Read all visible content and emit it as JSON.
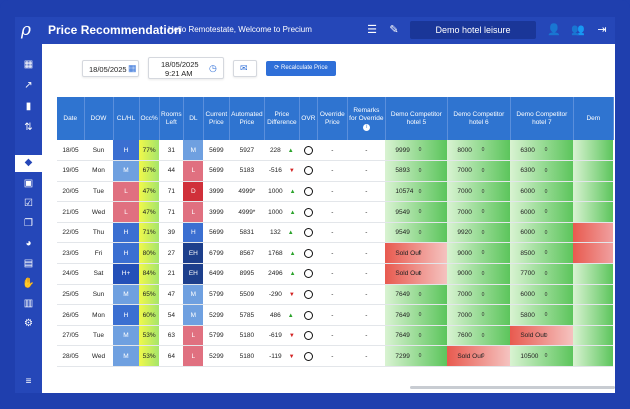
{
  "header": {
    "title": "Price Recommendation",
    "welcome": "Hello Remotestate, Welcome to Precium",
    "hotel": "Demo hotel leisure",
    "icons": [
      "list-icon",
      "pencil-icon",
      "user-gear-icon",
      "users-icon",
      "logout-icon"
    ]
  },
  "sidebar": {
    "icons": [
      "dashboard-icon",
      "trend-icon",
      "bar-chart-icon",
      "sort-icon",
      "tag-icon",
      "calendar-icon",
      "calendar-check-icon",
      "copy-icon",
      "pie-chart-icon",
      "report-icon",
      "hand-dollar-icon",
      "document-icon",
      "settings-icon",
      "menu-icon"
    ],
    "active": "tag-icon"
  },
  "toolbar": {
    "date": "18/05/2025",
    "datetime_date": "18/05/2025",
    "datetime_time": "9:21 AM",
    "recalc_label": "Recalculate Price"
  },
  "table": {
    "columns": [
      "Date",
      "DOW",
      "CL/HL",
      "Occ%",
      "Rooms Left",
      "DL",
      "Current Price",
      "Automated Price",
      "Price Difference",
      "OVR",
      "Override Price",
      "Remarks for Override",
      "Demo Competitor hotel 5",
      "Demo Competitor hotel 6",
      "Demo Competitor hotel 7",
      "Dem"
    ],
    "rows": [
      {
        "date": "18/05",
        "dow": "Sun",
        "clhl": "H",
        "occ": "77%",
        "rooms": "31",
        "dl": "M",
        "cur": "5699",
        "auto": "5927",
        "diff": "228",
        "dir": "up",
        "ovr_price": "-",
        "remarks": "-",
        "c5": "9999",
        "c6": "8000",
        "c7": "6300"
      },
      {
        "date": "19/05",
        "dow": "Mon",
        "clhl": "M",
        "occ": "67%",
        "rooms": "44",
        "dl": "L",
        "cur": "5699",
        "auto": "5183",
        "diff": "-516",
        "dir": "down",
        "ovr_price": "-",
        "remarks": "-",
        "c5": "5893",
        "c6": "7000",
        "c7": "6300"
      },
      {
        "date": "20/05",
        "dow": "Tue",
        "clhl": "L",
        "occ": "47%",
        "rooms": "71",
        "dl": "D",
        "cur": "3999",
        "auto": "4999*",
        "diff": "1000",
        "dir": "up",
        "ovr_price": "-",
        "remarks": "-",
        "c5": "10574",
        "c6": "7000",
        "c7": "6000"
      },
      {
        "date": "21/05",
        "dow": "Wed",
        "clhl": "L",
        "occ": "47%",
        "rooms": "71",
        "dl": "L",
        "cur": "3999",
        "auto": "4999*",
        "diff": "1000",
        "dir": "up",
        "ovr_price": "-",
        "remarks": "-",
        "c5": "9549",
        "c6": "7000",
        "c7": "6000"
      },
      {
        "date": "22/05",
        "dow": "Thu",
        "clhl": "H",
        "occ": "71%",
        "rooms": "39",
        "dl": "H",
        "cur": "5699",
        "auto": "5831",
        "diff": "132",
        "dir": "up",
        "ovr_price": "-",
        "remarks": "-",
        "c5": "9549",
        "c6": "9920",
        "c7": "6000"
      },
      {
        "date": "23/05",
        "dow": "Fri",
        "clhl": "H",
        "occ": "80%",
        "rooms": "27",
        "dl": "EH",
        "cur": "6799",
        "auto": "8567",
        "diff": "1768",
        "dir": "up",
        "ovr_price": "-",
        "remarks": "-",
        "c5": "Sold Out",
        "c6": "9000",
        "c7": "8500"
      },
      {
        "date": "24/05",
        "dow": "Sat",
        "clhl": "H+",
        "occ": "84%",
        "rooms": "21",
        "dl": "EH",
        "cur": "6499",
        "auto": "8995",
        "diff": "2496",
        "dir": "up",
        "ovr_price": "-",
        "remarks": "-",
        "c5": "Sold Out",
        "c6": "9000",
        "c7": "7700"
      },
      {
        "date": "25/05",
        "dow": "Sun",
        "clhl": "M",
        "occ": "65%",
        "rooms": "47",
        "dl": "M",
        "cur": "5799",
        "auto": "5509",
        "diff": "-290",
        "dir": "down",
        "ovr_price": "-",
        "remarks": "-",
        "c5": "7649",
        "c6": "7000",
        "c7": "6000"
      },
      {
        "date": "26/05",
        "dow": "Mon",
        "clhl": "H",
        "occ": "60%",
        "rooms": "54",
        "dl": "M",
        "cur": "5299",
        "auto": "5785",
        "diff": "486",
        "dir": "up",
        "ovr_price": "-",
        "remarks": "-",
        "c5": "7649",
        "c6": "7000",
        "c7": "5800"
      },
      {
        "date": "27/05",
        "dow": "Tue",
        "clhl": "M",
        "occ": "53%",
        "rooms": "63",
        "dl": "L",
        "cur": "5799",
        "auto": "5180",
        "diff": "-619",
        "dir": "down",
        "ovr_price": "-",
        "remarks": "-",
        "c5": "7649",
        "c6": "7600",
        "c7": "Sold Out"
      },
      {
        "date": "28/05",
        "dow": "Wed",
        "clhl": "M",
        "occ": "53%",
        "rooms": "64",
        "dl": "L",
        "cur": "5299",
        "auto": "5180",
        "diff": "-119",
        "dir": "down",
        "ovr_price": "-",
        "remarks": "-",
        "c5": "7299",
        "c6": "Sold Out",
        "c7": "10500"
      }
    ],
    "sub_mark": "0"
  },
  "colors": {
    "brand": "#2547b8",
    "header_row": "#2f74d0",
    "H": "#3b6fd1",
    "H+": "#2450b8",
    "M": "#6fa0e0",
    "L": "#e07080",
    "D": "#d0303a",
    "EH": "#1d3f8c"
  }
}
